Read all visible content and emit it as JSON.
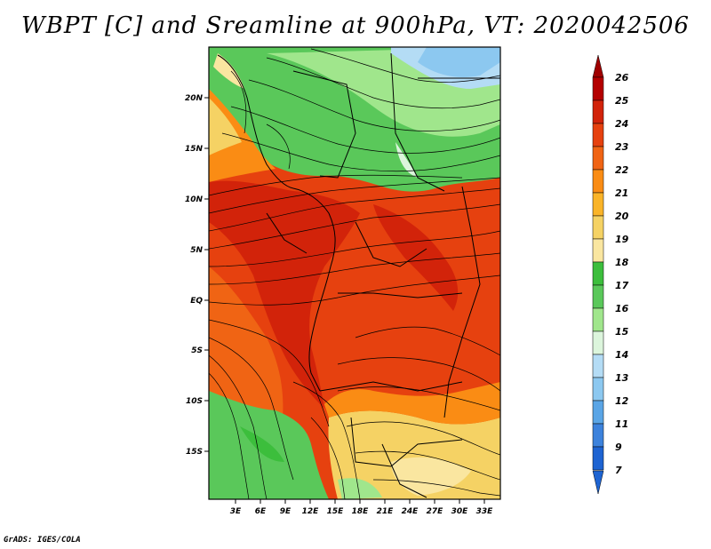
{
  "title": "WBPT [C] and Sreamline at 900hPa, VT: 2020042506",
  "credit": "GrADS: IGES/COLA",
  "map": {
    "lat_labels": [
      "20N",
      "15N",
      "10N",
      "5N",
      "EQ",
      "5S",
      "10S",
      "15S"
    ],
    "lon_labels": [
      "3E",
      "6E",
      "9E",
      "12E",
      "15E",
      "18E",
      "21E",
      "24E",
      "27E",
      "30E",
      "33E"
    ],
    "lat_range": [
      -19.5,
      24.5
    ],
    "lon_range": [
      0,
      36
    ]
  },
  "colorbar": {
    "labels": [
      "26",
      "25",
      "24",
      "23",
      "22",
      "21",
      "20",
      "19",
      "18",
      "17",
      "16",
      "15",
      "14",
      "13",
      "12",
      "11",
      "9",
      "7"
    ],
    "colors": [
      "#b40000",
      "#d2230a",
      "#e6410f",
      "#f06414",
      "#fa8c14",
      "#fab428",
      "#f5d264",
      "#fae6a0",
      "#3cbe3c",
      "#5ac85a",
      "#a0e68c",
      "#dcf5dc",
      "#b4dcf5",
      "#8cc8f0",
      "#5aa5e6",
      "#3c82dc",
      "#1e64d2"
    ],
    "top_arrow_color": "#a00000",
    "bottom_arrow_color": "#1e64d2"
  },
  "field_colors": {
    "green_dark": "#3cbe3c",
    "green": "#5ac85a",
    "green_light": "#a0e68c",
    "pale": "#dcf5dc",
    "blue_light": "#b4dcf5",
    "blue": "#8cc8f0",
    "yellow": "#f5d264",
    "yellow_pale": "#fae6a0",
    "orange": "#fa8c14",
    "orange_red": "#f06414",
    "red": "#e6410f",
    "deep_red": "#d2230a"
  }
}
